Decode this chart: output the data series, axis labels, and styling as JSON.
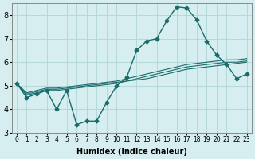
{
  "xlabel": "Humidex (Indice chaleur)",
  "ylabel": "",
  "bg_color": "#d6eef0",
  "grid_color": "#b0d4d8",
  "line_color": "#1a6b6b",
  "x_values": [
    0,
    1,
    2,
    3,
    4,
    5,
    6,
    7,
    8,
    9,
    10,
    11,
    12,
    13,
    14,
    15,
    16,
    17,
    18,
    19,
    20,
    21,
    22,
    23
  ],
  "line1_y": [
    5.1,
    4.5,
    4.65,
    4.8,
    4.0,
    4.8,
    3.35,
    3.5,
    3.5,
    4.3,
    5.0,
    5.35,
    6.5,
    6.9,
    7.0,
    7.75,
    8.35,
    8.3,
    7.8,
    6.9,
    6.3,
    5.9,
    5.3,
    5.5
  ],
  "line2_y": [
    5.1,
    4.65,
    4.75,
    4.85,
    4.85,
    4.9,
    4.95,
    5.0,
    5.05,
    5.1,
    5.15,
    5.2,
    5.25,
    5.3,
    5.4,
    5.5,
    5.6,
    5.7,
    5.75,
    5.8,
    5.85,
    5.9,
    5.95,
    6.0
  ],
  "line3_y": [
    5.1,
    4.6,
    4.7,
    4.8,
    4.8,
    4.85,
    4.9,
    4.95,
    5.0,
    5.05,
    5.1,
    5.2,
    5.3,
    5.4,
    5.5,
    5.6,
    5.7,
    5.8,
    5.85,
    5.9,
    5.95,
    6.0,
    6.0,
    6.05
  ],
  "line4_y": [
    5.1,
    4.7,
    4.8,
    4.9,
    4.9,
    4.95,
    5.0,
    5.05,
    5.1,
    5.15,
    5.2,
    5.3,
    5.4,
    5.5,
    5.6,
    5.7,
    5.8,
    5.9,
    5.95,
    6.0,
    6.05,
    6.1,
    6.1,
    6.15
  ],
  "ylim": [
    3.0,
    8.5
  ],
  "yticks": [
    3,
    4,
    5,
    6,
    7,
    8
  ],
  "xtick_labels": [
    "0",
    "1",
    "2",
    "3",
    "4",
    "5",
    "6",
    "7",
    "8",
    "9",
    "10",
    "11",
    "12",
    "13",
    "14",
    "15",
    "16",
    "17",
    "18",
    "19",
    "20",
    "21",
    "22",
    "23"
  ]
}
